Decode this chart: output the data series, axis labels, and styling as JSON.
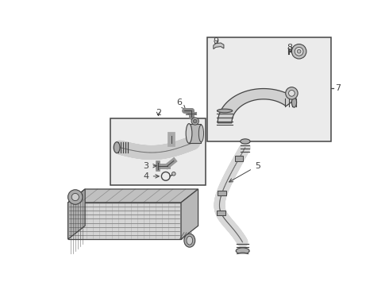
{
  "bg_color": "#ffffff",
  "box_fill": "#ebebeb",
  "line_color": "#444444",
  "fig_width": 4.9,
  "fig_height": 3.6,
  "dpi": 100,
  "label_fs": 8.0
}
